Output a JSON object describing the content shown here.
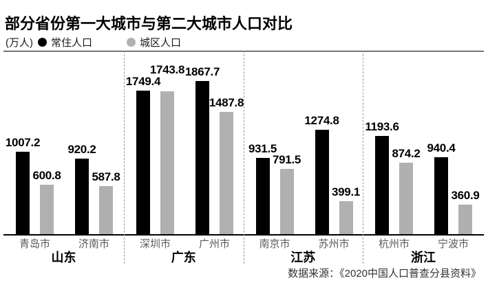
{
  "chart_data": {
    "type": "bar",
    "title": "部分省份第一大城市与第二大城市人口对比",
    "unit_label": "(万人)",
    "unit": "万人",
    "legend_position": "top",
    "grid": false,
    "ylim": [
      0,
      1900
    ],
    "legend": [
      {
        "key": "resident",
        "name": "常住人口",
        "color": "#000000"
      },
      {
        "key": "urban",
        "name": "城区人口",
        "color": "#b0b0b0"
      }
    ],
    "groups": [
      {
        "province": "山东",
        "cities": [
          {
            "name": "青岛市",
            "resident": 1007.2,
            "urban": 600.8
          },
          {
            "name": "济南市",
            "resident": 920.2,
            "urban": 587.8
          }
        ]
      },
      {
        "province": "广东",
        "cities": [
          {
            "name": "深圳市",
            "resident": 1749.4,
            "urban": 1743.8,
            "urban_label_raise": 18
          },
          {
            "name": "广州市",
            "resident": 1867.7,
            "urban": 1487.8
          }
        ]
      },
      {
        "province": "江苏",
        "cities": [
          {
            "name": "南京市",
            "resident": 931.5,
            "urban": 791.5
          },
          {
            "name": "苏州市",
            "resident": 1274.8,
            "urban": 399.1
          }
        ]
      },
      {
        "province": "浙江",
        "cities": [
          {
            "name": "杭州市",
            "resident": 1193.6,
            "urban": 874.2
          },
          {
            "name": "宁波市",
            "resident": 940.4,
            "urban": 360.9
          }
        ]
      }
    ],
    "separator_color": "#999999",
    "source": "数据来源：《2020中国人口普查分县资料》"
  }
}
